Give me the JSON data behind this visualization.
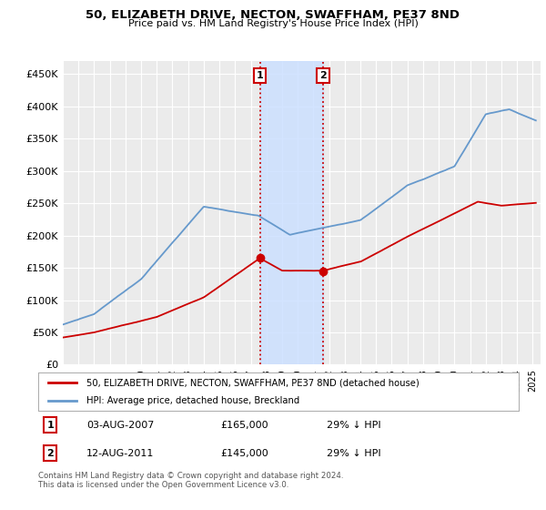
{
  "title": "50, ELIZABETH DRIVE, NECTON, SWAFFHAM, PE37 8ND",
  "subtitle": "Price paid vs. HM Land Registry's House Price Index (HPI)",
  "ylabel_ticks": [
    "£0",
    "£50K",
    "£100K",
    "£150K",
    "£200K",
    "£250K",
    "£300K",
    "£350K",
    "£400K",
    "£450K"
  ],
  "ytick_vals": [
    0,
    50000,
    100000,
    150000,
    200000,
    250000,
    300000,
    350000,
    400000,
    450000
  ],
  "ylim": [
    0,
    470000
  ],
  "xlim_start": 1995.0,
  "xlim_end": 2025.5,
  "purchase1_date": 2007.58,
  "purchase1_price": 165000,
  "purchase2_date": 2011.61,
  "purchase2_price": 145000,
  "hpi_color": "#6699cc",
  "price_color": "#cc0000",
  "vline_color": "#cc0000",
  "shade_color": "#cce0ff",
  "legend_label_red": "50, ELIZABETH DRIVE, NECTON, SWAFFHAM, PE37 8ND (detached house)",
  "legend_label_blue": "HPI: Average price, detached house, Breckland",
  "table_rows": [
    {
      "num": "1",
      "date": "03-AUG-2007",
      "price": "£165,000",
      "pct": "29% ↓ HPI"
    },
    {
      "num": "2",
      "date": "12-AUG-2011",
      "price": "£145,000",
      "pct": "29% ↓ HPI"
    }
  ],
  "footnote": "Contains HM Land Registry data © Crown copyright and database right 2024.\nThis data is licensed under the Open Government Licence v3.0.",
  "background_color": "#ffffff",
  "plot_bg_color": "#ebebeb"
}
